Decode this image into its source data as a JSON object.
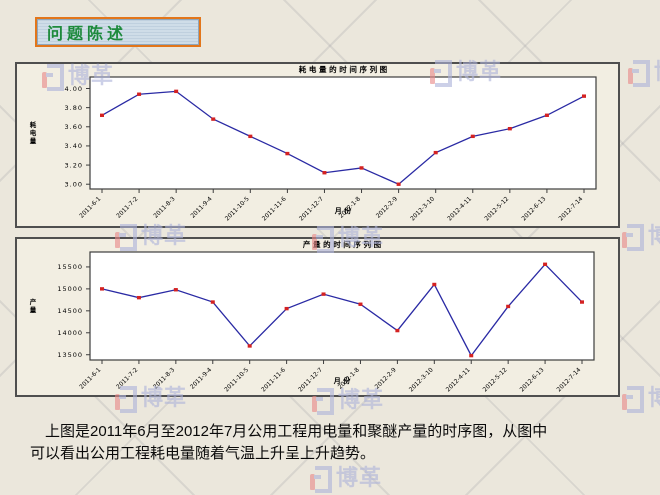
{
  "slide": {
    "title": "问题陈述",
    "caption": {
      "line1": "上图是2011年6月至2012年7月公用工程用电量和聚醚产量的时序图，从图中",
      "line2": "可以看出公用工程耗电量随着气温上升呈上升趋势。"
    }
  },
  "watermark": {
    "brand_text": "博革",
    "bar_color": "#e98a8a",
    "glyph_color": "#aeb4da"
  },
  "chart_data": [
    {
      "type": "line",
      "title": "耗 电 量  的 时 间 序 列 图",
      "xlabel": "月 份",
      "ylabel": "耗电量",
      "categories": [
        "2011-6-1",
        "2011-7-2",
        "2011-8-3",
        "2011-9-4",
        "2011-10-5",
        "2011-11-6",
        "2011-12-7",
        "2012-1-8",
        "2012-2-9",
        "2012-3-10",
        "2012-4-11",
        "2012-5-12",
        "2012-6-13",
        "2012-7-14"
      ],
      "values": [
        3.72,
        3.94,
        3.97,
        3.68,
        3.5,
        3.32,
        3.12,
        3.17,
        3.0,
        3.33,
        3.5,
        3.58,
        3.72,
        3.92
      ],
      "ytick_labels": [
        "3.00",
        "3.20",
        "3.40",
        "3.60",
        "3.80",
        "4.00"
      ],
      "ylim": [
        2.95,
        4.12
      ],
      "grid": false,
      "legend": false,
      "line_color": "#2a2aa4",
      "marker_color": "#d42222"
    },
    {
      "type": "line",
      "title": "产 量  的 时 间 序 列 图",
      "xlabel": "月 份",
      "ylabel": "产量",
      "categories": [
        "2011-6-1",
        "2011-7-2",
        "2011-8-3",
        "2011-9-4",
        "2011-10-5",
        "2011-11-6",
        "2011-12-7",
        "2012-1-8",
        "2012-2-9",
        "2012-3-10",
        "2012-4-11",
        "2012-5-12",
        "2012-6-13",
        "2012-7-14"
      ],
      "values": [
        15000,
        14800,
        14980,
        14700,
        13700,
        14550,
        14880,
        14650,
        14050,
        15100,
        13480,
        14600,
        15560,
        14700
      ],
      "ytick_labels": [
        "13500",
        "14000",
        "14500",
        "15000",
        "15500"
      ],
      "ylim": [
        13380,
        15840
      ],
      "grid": false,
      "legend": false,
      "line_color": "#2a2aa4",
      "marker_color": "#d42222"
    }
  ]
}
